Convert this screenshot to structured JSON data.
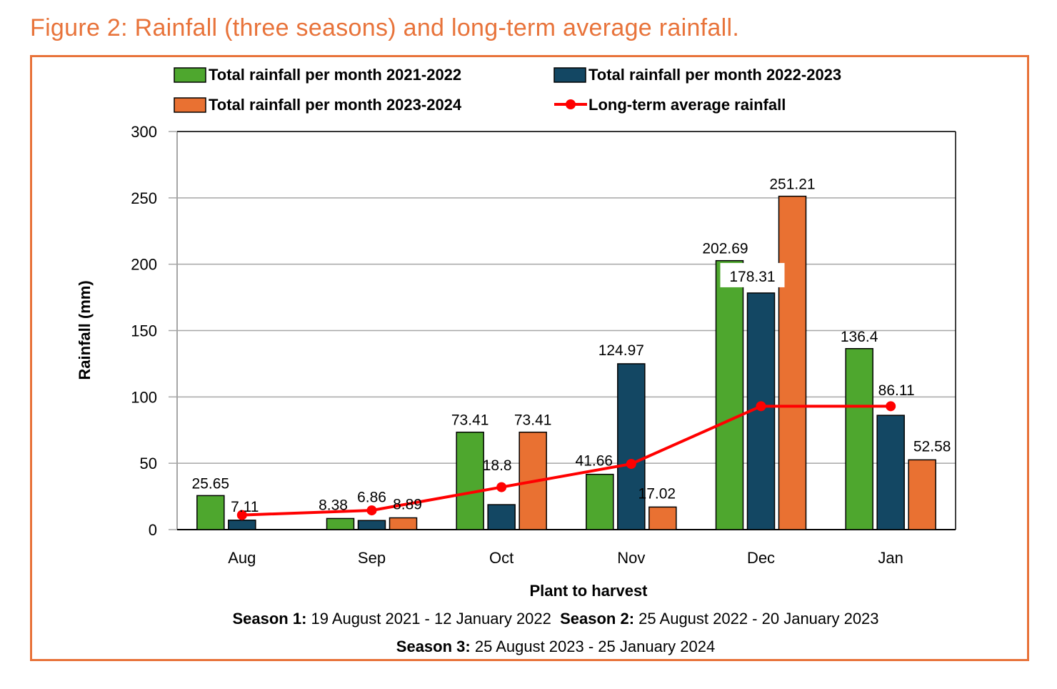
{
  "figure_title": "Figure 2: Rainfall (three seasons) and long-term average rainfall.",
  "colors": {
    "accent": "#E8733A",
    "series_2021_2022": "#4EA72E",
    "series_2022_2023": "#134763",
    "series_2023_2024": "#E97132",
    "long_term_avg": "#FF0000",
    "gridline": "#A6A6A6"
  },
  "chart_data": {
    "type": "bar",
    "title": "Figure 2: Rainfall (three seasons) and long-term average rainfall.",
    "xlabel": "Plant to harvest",
    "ylabel": "Rainfall (mm)",
    "ylim": [
      0,
      300
    ],
    "yticks": [
      0,
      50,
      100,
      150,
      200,
      250,
      300
    ],
    "grid": true,
    "legend_position": "top",
    "categories": [
      "Aug",
      "Sep",
      "Oct",
      "Nov",
      "Dec",
      "Jan"
    ],
    "series": [
      {
        "name": "Total rainfall per month 2021-2022",
        "type": "bar",
        "values": [
          25.65,
          8.38,
          73.41,
          41.66,
          202.69,
          136.4
        ],
        "labels": [
          "25.65",
          "8.38",
          "73.41",
          "41.66",
          "202.69",
          "136.4"
        ]
      },
      {
        "name": "Total rainfall per month 2022-2023",
        "type": "bar",
        "values": [
          7.11,
          6.86,
          18.8,
          124.97,
          178.31,
          86.11
        ],
        "labels": [
          "7.11",
          "6.86",
          "18.8",
          "124.97",
          "178.31",
          "86.11"
        ]
      },
      {
        "name": "Total rainfall per month 2023-2024",
        "type": "bar",
        "values": [
          null,
          8.89,
          73.41,
          17.02,
          251.21,
          52.58
        ],
        "labels": [
          "",
          "8.89",
          "73.41",
          "17.02",
          "251.21",
          "52.58"
        ]
      },
      {
        "name": "Long-term average rainfall",
        "type": "line",
        "values": [
          11,
          14.5,
          32,
          49.5,
          93,
          93
        ]
      }
    ],
    "footnotes": [
      [
        {
          "bold": "Season 1:",
          "text": " 19 August 2021 - 12 January 2022"
        },
        {
          "bold": "Season 2:",
          "text": " 25 August 2022 - 20 January 2023"
        }
      ],
      [
        {
          "bold": "Season 3:",
          "text": " 25 August 2023 - 25 January 2024"
        }
      ]
    ]
  }
}
